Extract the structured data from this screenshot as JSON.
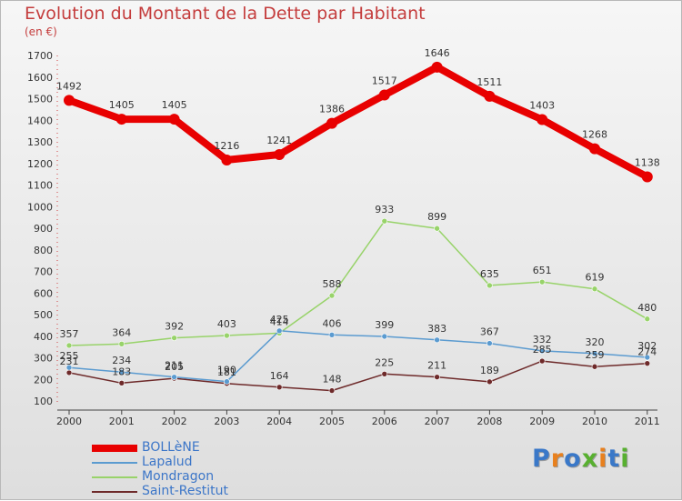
{
  "title": "Evolution du Montant de la Dette par Habitant",
  "unit_label": "(en €)",
  "logo": {
    "text": "Proxiti",
    "colors": [
      "#3a78c8",
      "#e8801e",
      "#3a78c8",
      "#58b030",
      "#e8801e",
      "#3a78c8",
      "#58b030"
    ]
  },
  "chart_data": {
    "type": "line",
    "x": [
      "2000",
      "2001",
      "2002",
      "2003",
      "2004",
      "2005",
      "2006",
      "2007",
      "2008",
      "2009",
      "2010",
      "2011"
    ],
    "ylim": [
      100,
      1700
    ],
    "yticks": [
      100,
      200,
      300,
      400,
      500,
      600,
      700,
      800,
      900,
      1000,
      1100,
      1200,
      1300,
      1400,
      1500,
      1600,
      1700
    ],
    "grid": false,
    "legend_position": "bottom-left",
    "series": [
      {
        "name": "BOLLèNE",
        "color": "#e80000",
        "values": [
          1492,
          1405,
          1405,
          1216,
          1241,
          1386,
          1517,
          1646,
          1511,
          1403,
          1268,
          1138
        ]
      },
      {
        "name": "Lapalud",
        "color": "#5b9bd0",
        "values": [
          255,
          234,
          211,
          190,
          425,
          406,
          399,
          383,
          367,
          332,
          320,
          302
        ]
      },
      {
        "name": "Mondragon",
        "color": "#98d36a",
        "values": [
          357,
          364,
          392,
          403,
          414,
          588,
          933,
          899,
          635,
          651,
          619,
          480
        ]
      },
      {
        "name": "Saint-Restitut",
        "color": "#6e2a2a",
        "values": [
          231,
          183,
          205,
          181,
          164,
          148,
          225,
          211,
          189,
          285,
          259,
          274
        ]
      }
    ]
  }
}
